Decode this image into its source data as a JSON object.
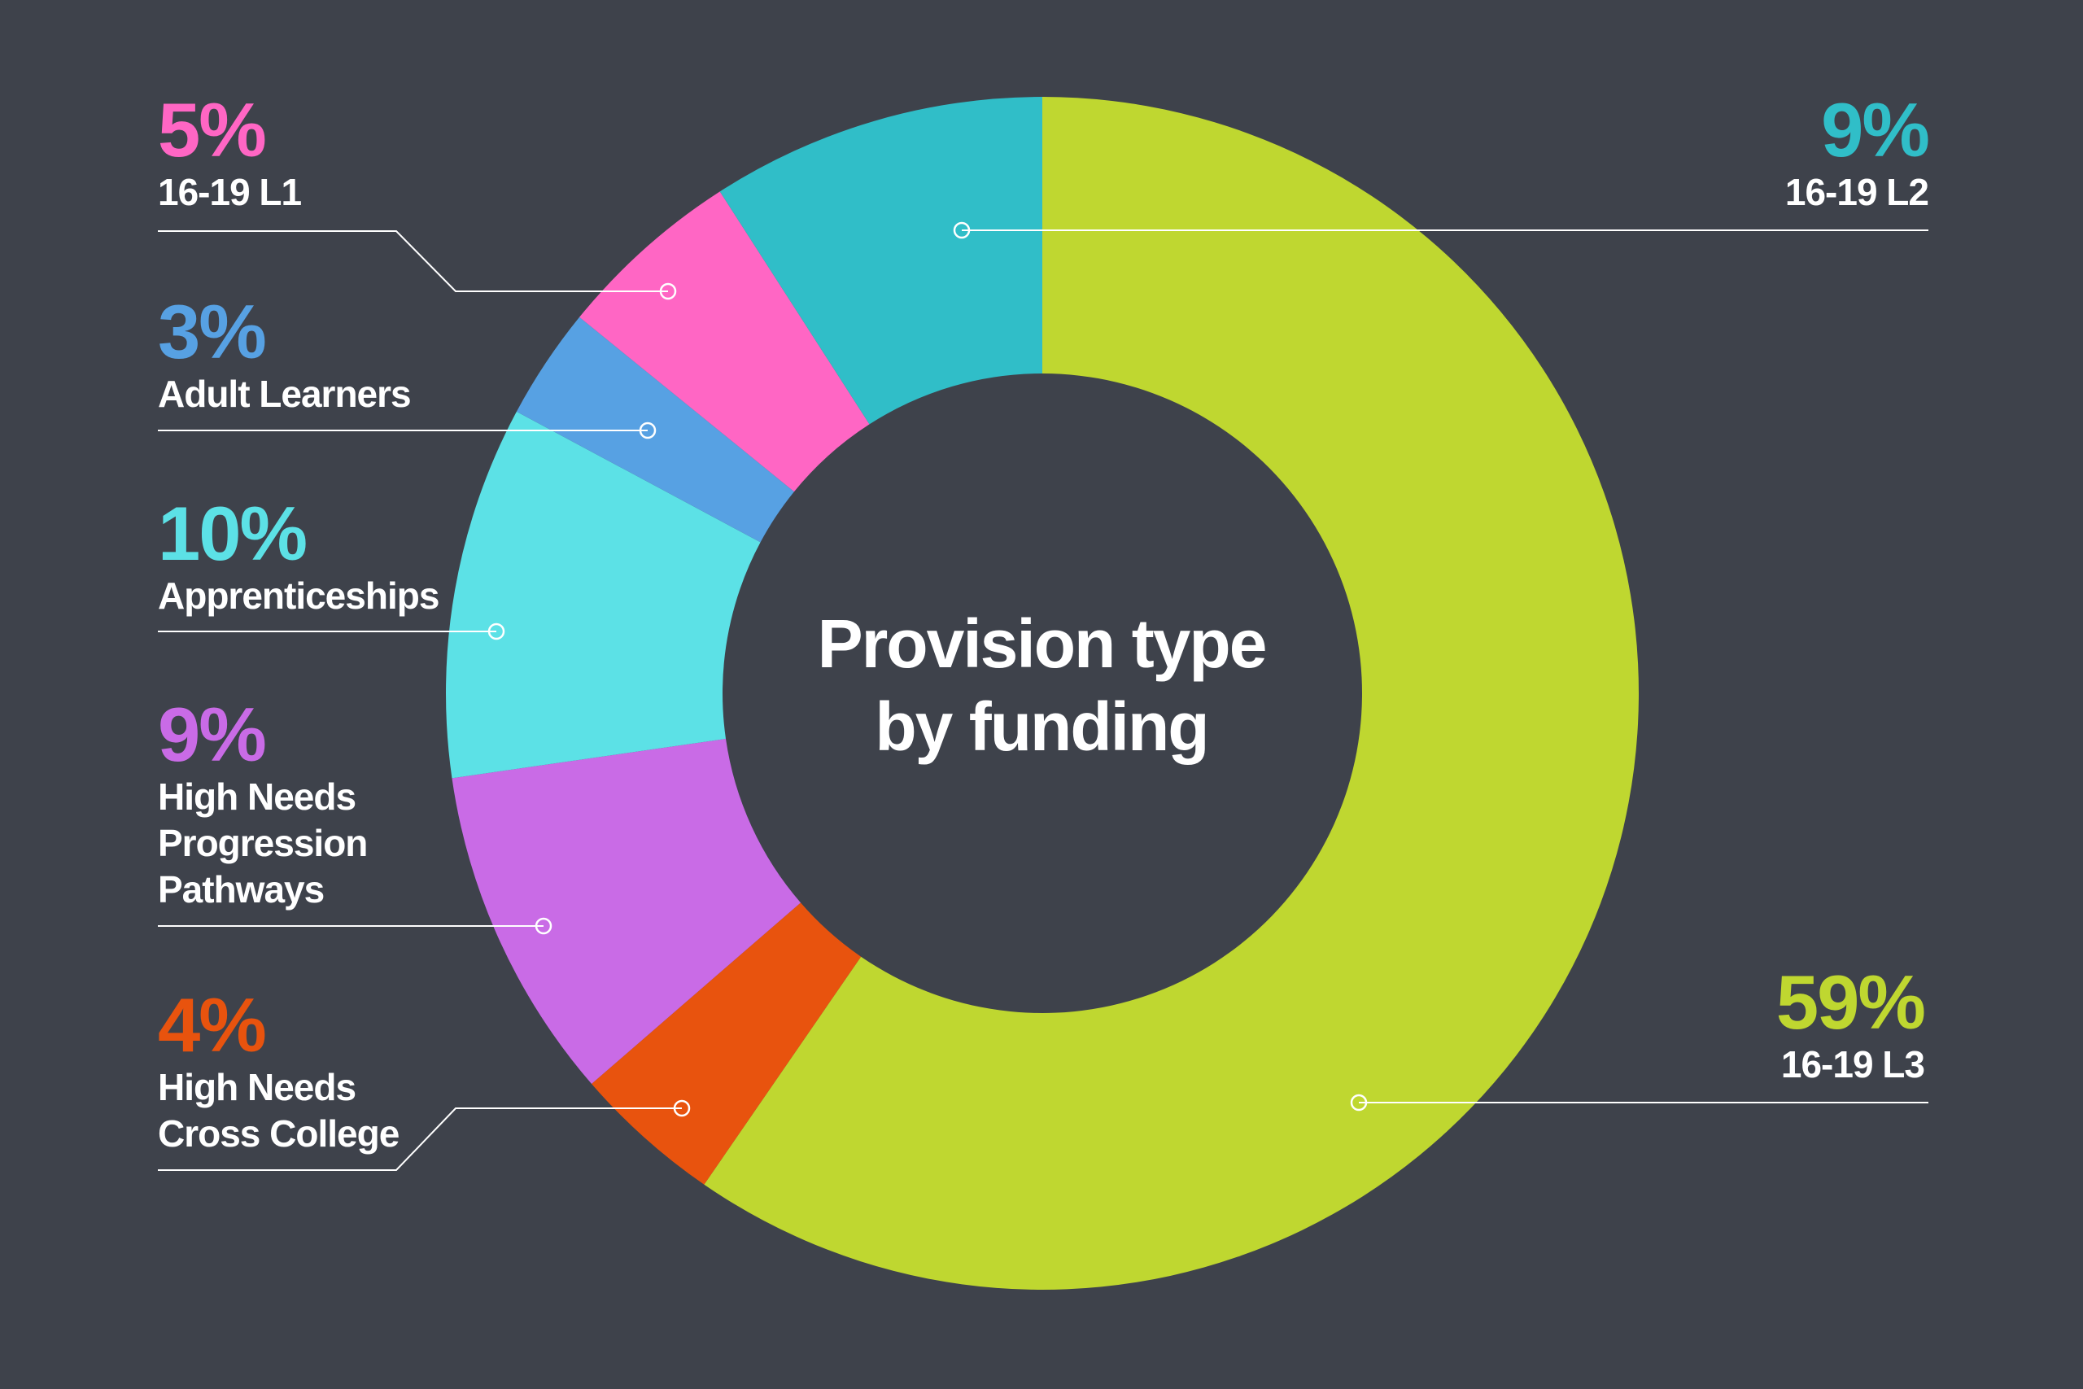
{
  "chart_data": {
    "type": "pie",
    "style": "donut",
    "title": "Provision type\nby funding",
    "slices": [
      {
        "name": "16-19 L3",
        "label": "16-19 L3",
        "pct_label": "59%",
        "value": 59,
        "color": "#bfd730"
      },
      {
        "name": "High Needs Cross College",
        "label": "High Needs\nCross College",
        "pct_label": "4%",
        "value": 4,
        "color": "#e8530e"
      },
      {
        "name": "High Needs Progression Pathways",
        "label": "High Needs\nProgression\nPathways",
        "pct_label": "9%",
        "value": 9,
        "color": "#c96be6"
      },
      {
        "name": "Apprenticeships",
        "label": "Apprenticeships",
        "pct_label": "10%",
        "value": 10,
        "color": "#5ce1e6"
      },
      {
        "name": "Adult Learners",
        "label": "Adult Learners",
        "pct_label": "3%",
        "value": 3,
        "color": "#57a1e3"
      },
      {
        "name": "16-19 L1",
        "label": "16-19 L1",
        "pct_label": "5%",
        "value": 5,
        "color": "#ff66c4"
      },
      {
        "name": "16-19 L2",
        "label": "16-19 L2",
        "pct_label": "9%",
        "value": 9,
        "color": "#30bec8"
      }
    ]
  }
}
